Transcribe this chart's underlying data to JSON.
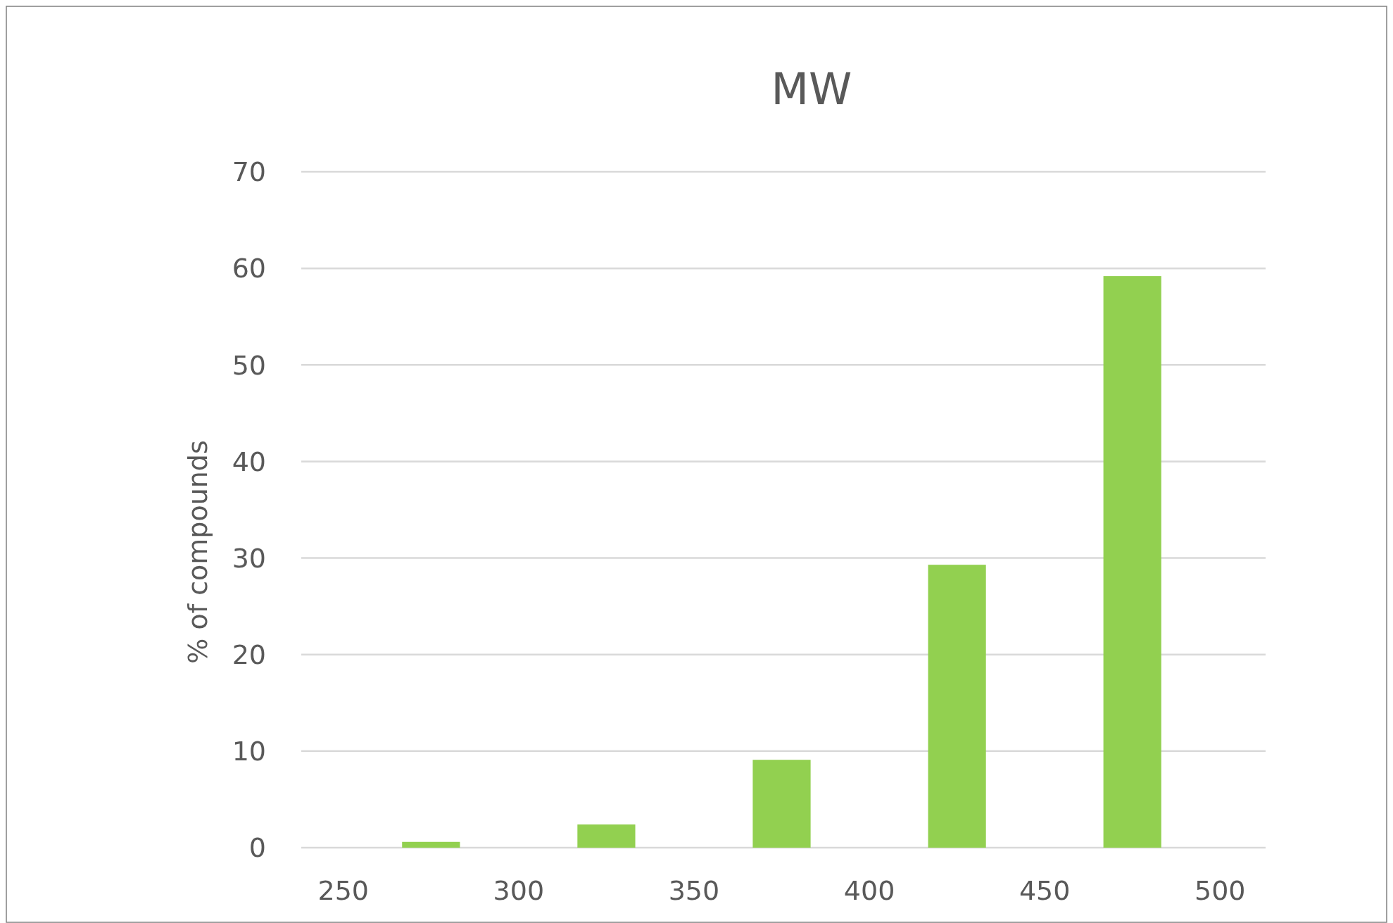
{
  "chart_data": {
    "type": "histogram",
    "title": "MW",
    "ylabel": "% of compounds",
    "bins": [
      250,
      300,
      350,
      400,
      450,
      500
    ],
    "values": [
      0.6,
      2.4,
      9.1,
      29.3,
      59.2
    ],
    "color": "#92d050",
    "xlim": [
      238,
      513
    ],
    "xticks": [
      250,
      300,
      350,
      400,
      450,
      500
    ],
    "ylim": [
      0,
      70
    ],
    "yticks": [
      0,
      10,
      20,
      30,
      40,
      50,
      60,
      70
    ],
    "grid": "y"
  }
}
